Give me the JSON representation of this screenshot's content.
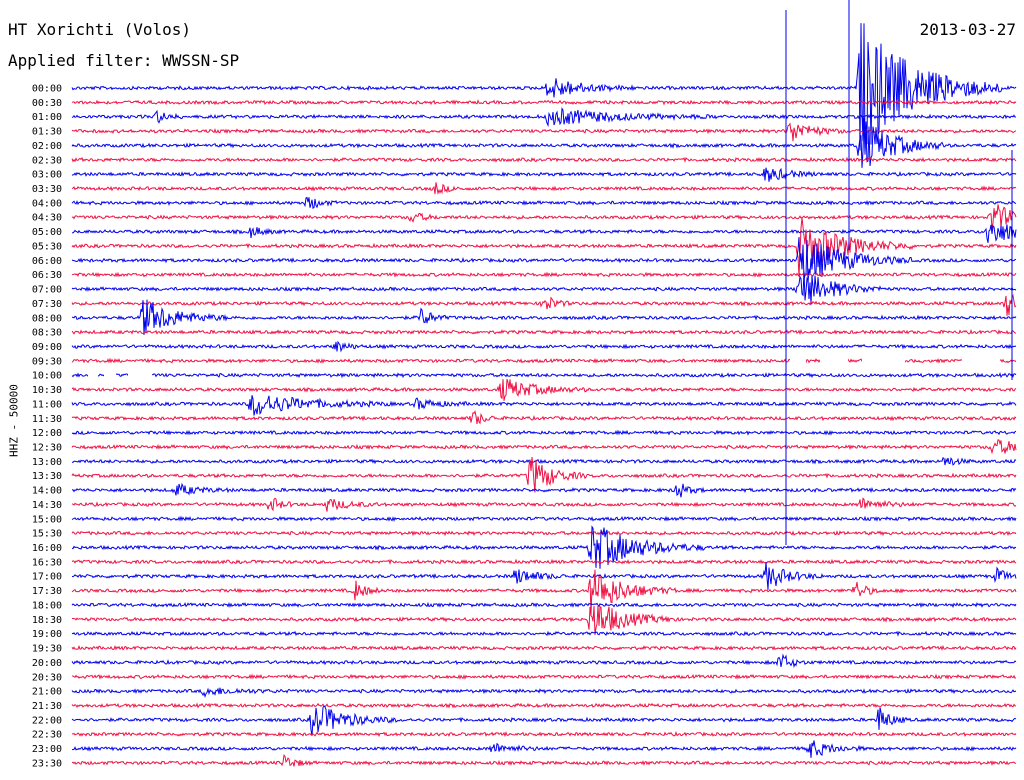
{
  "header": {
    "station": "HT Xorichti (Volos)",
    "filter": "Applied filter: WWSSN-SP",
    "date": "2013-03-27"
  },
  "channel_label": "HHZ - 50000",
  "colors": {
    "odd": "#0000ee",
    "even": "#ee1144",
    "gap": "#ffffff"
  },
  "chart_data": {
    "type": "line",
    "title": "HT Xorichti (Volos)",
    "ylabel": "HHZ - 50000",
    "rows": [
      "00:00",
      "00:30",
      "01:00",
      "01:30",
      "02:00",
      "02:30",
      "03:00",
      "03:30",
      "04:00",
      "04:30",
      "05:00",
      "05:30",
      "06:00",
      "06:30",
      "07:00",
      "07:30",
      "08:00",
      "08:30",
      "09:00",
      "09:30",
      "10:00",
      "10:30",
      "11:00",
      "11:30",
      "12:00",
      "12:30",
      "13:00",
      "13:30",
      "14:00",
      "14:30",
      "15:00",
      "15:30",
      "16:00",
      "16:30",
      "17:00",
      "17:30",
      "18:00",
      "18:30",
      "19:00",
      "19:30",
      "20:00",
      "20:30",
      "21:00",
      "21:30",
      "22:00",
      "22:30",
      "23:00",
      "23:30"
    ],
    "colors_alternate": [
      "blue",
      "red"
    ],
    "events": [
      {
        "row": 0,
        "x": 0.505,
        "amp": 12,
        "dur": 0.03
      },
      {
        "row": 0,
        "x": 0.835,
        "amp": 70,
        "dur": 0.05
      },
      {
        "row": 2,
        "x": 0.09,
        "amp": 6,
        "dur": 0.01
      },
      {
        "row": 2,
        "x": 0.505,
        "amp": 9,
        "dur": 0.06
      },
      {
        "row": 3,
        "x": 0.76,
        "amp": 12,
        "dur": 0.02
      },
      {
        "row": 4,
        "x": 0.835,
        "amp": 30,
        "dur": 0.03
      },
      {
        "row": 6,
        "x": 0.735,
        "amp": 8,
        "dur": 0.02
      },
      {
        "row": 7,
        "x": 0.385,
        "amp": 6,
        "dur": 0.01
      },
      {
        "row": 8,
        "x": 0.25,
        "amp": 8,
        "dur": 0.01
      },
      {
        "row": 9,
        "x": 0.36,
        "amp": 6,
        "dur": 0.01
      },
      {
        "row": 9,
        "x": 0.975,
        "amp": 16,
        "dur": 0.02
      },
      {
        "row": 10,
        "x": 0.19,
        "amp": 6,
        "dur": 0.01
      },
      {
        "row": 10,
        "x": 0.97,
        "amp": 14,
        "dur": 0.03
      },
      {
        "row": 11,
        "x": 0.77,
        "amp": 30,
        "dur": 0.04
      },
      {
        "row": 12,
        "x": 0.77,
        "amp": 28,
        "dur": 0.04
      },
      {
        "row": 14,
        "x": 0.77,
        "amp": 22,
        "dur": 0.03
      },
      {
        "row": 15,
        "x": 0.5,
        "amp": 10,
        "dur": 0.01
      },
      {
        "row": 15,
        "x": 0.99,
        "amp": 14,
        "dur": 0.01
      },
      {
        "row": 16,
        "x": 0.075,
        "amp": 20,
        "dur": 0.03
      },
      {
        "row": 16,
        "x": 0.37,
        "amp": 10,
        "dur": 0.01
      },
      {
        "row": 18,
        "x": 0.28,
        "amp": 6,
        "dur": 0.01
      },
      {
        "row": 21,
        "x": 0.455,
        "amp": 12,
        "dur": 0.03
      },
      {
        "row": 22,
        "x": 0.19,
        "amp": 12,
        "dur": 0.05
      },
      {
        "row": 22,
        "x": 0.365,
        "amp": 5,
        "dur": 0.02
      },
      {
        "row": 23,
        "x": 0.425,
        "amp": 8,
        "dur": 0.01
      },
      {
        "row": 25,
        "x": 0.975,
        "amp": 8,
        "dur": 0.03
      },
      {
        "row": 26,
        "x": 0.925,
        "amp": 6,
        "dur": 0.01
      },
      {
        "row": 27,
        "x": 0.485,
        "amp": 22,
        "dur": 0.02
      },
      {
        "row": 28,
        "x": 0.11,
        "amp": 6,
        "dur": 0.02
      },
      {
        "row": 28,
        "x": 0.64,
        "amp": 10,
        "dur": 0.01
      },
      {
        "row": 29,
        "x": 0.21,
        "amp": 8,
        "dur": 0.01
      },
      {
        "row": 29,
        "x": 0.27,
        "amp": 6,
        "dur": 0.02
      },
      {
        "row": 29,
        "x": 0.835,
        "amp": 6,
        "dur": 0.02
      },
      {
        "row": 32,
        "x": 0.55,
        "amp": 26,
        "dur": 0.04
      },
      {
        "row": 34,
        "x": 0.47,
        "amp": 8,
        "dur": 0.02
      },
      {
        "row": 34,
        "x": 0.735,
        "amp": 14,
        "dur": 0.02
      },
      {
        "row": 34,
        "x": 0.98,
        "amp": 8,
        "dur": 0.01
      },
      {
        "row": 35,
        "x": 0.3,
        "amp": 10,
        "dur": 0.01
      },
      {
        "row": 35,
        "x": 0.55,
        "amp": 24,
        "dur": 0.03
      },
      {
        "row": 35,
        "x": 0.83,
        "amp": 10,
        "dur": 0.01
      },
      {
        "row": 37,
        "x": 0.55,
        "amp": 22,
        "dur": 0.03
      },
      {
        "row": 40,
        "x": 0.75,
        "amp": 10,
        "dur": 0.01
      },
      {
        "row": 42,
        "x": 0.14,
        "amp": 4,
        "dur": 0.03
      },
      {
        "row": 44,
        "x": 0.255,
        "amp": 18,
        "dur": 0.03
      },
      {
        "row": 44,
        "x": 0.855,
        "amp": 14,
        "dur": 0.01
      },
      {
        "row": 46,
        "x": 0.445,
        "amp": 5,
        "dur": 0.02
      },
      {
        "row": 46,
        "x": 0.78,
        "amp": 10,
        "dur": 0.02
      },
      {
        "row": 47,
        "x": 0.225,
        "amp": 8,
        "dur": 0.01
      }
    ]
  }
}
